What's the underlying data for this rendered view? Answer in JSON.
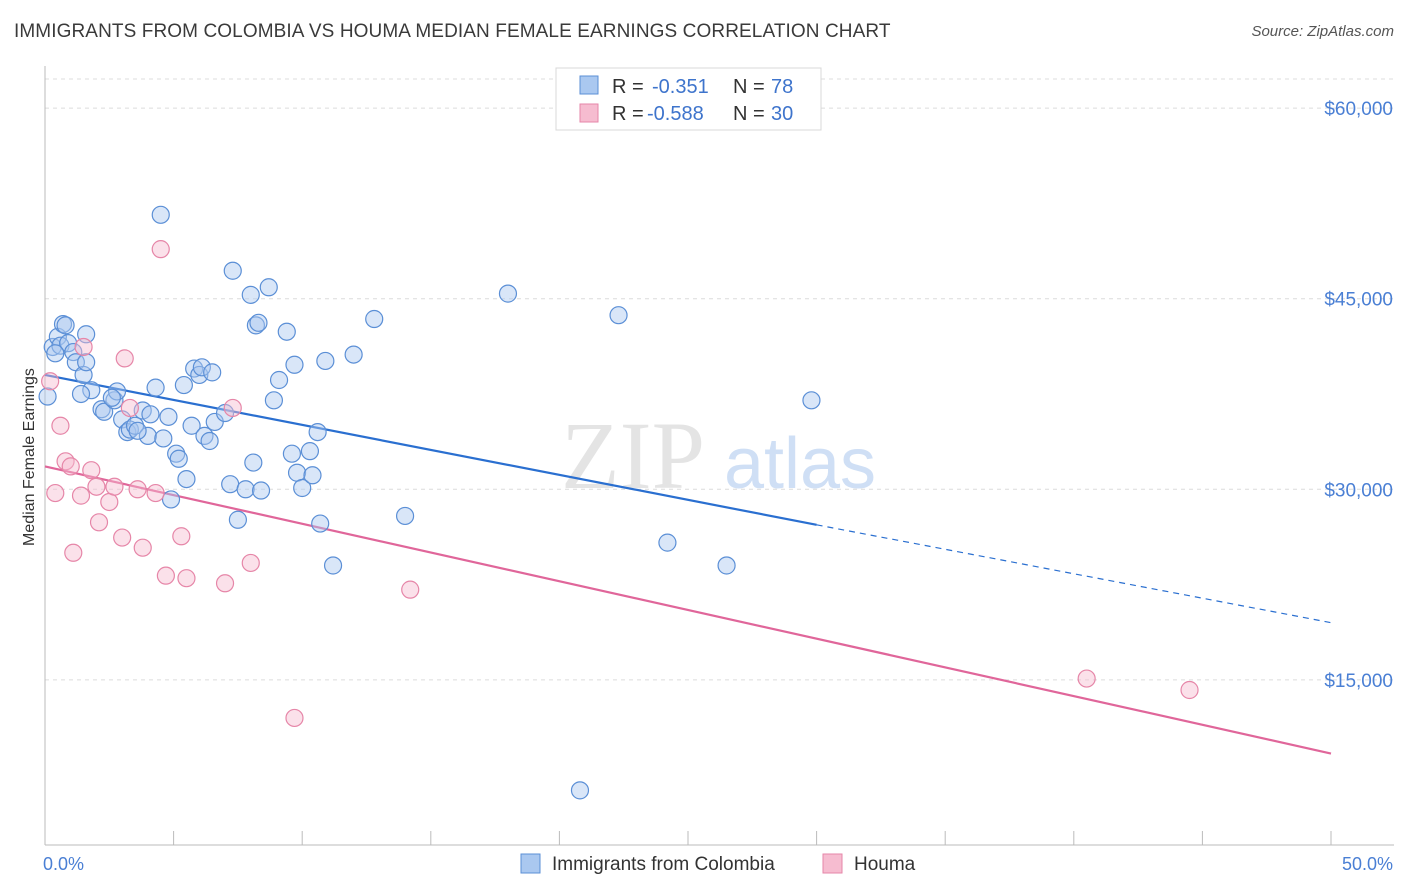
{
  "title": "IMMIGRANTS FROM COLOMBIA VS HOUMA MEDIAN FEMALE EARNINGS CORRELATION CHART",
  "source": "Source: ZipAtlas.com",
  "watermark": {
    "zip": "ZIP",
    "atlas": "atlas"
  },
  "colors": {
    "blue_fill": "#aac8f0",
    "blue_stroke": "#5b8fd6",
    "blue_line": "#2a6fd0",
    "pink_fill": "#f6bcd0",
    "pink_stroke": "#e686a8",
    "pink_line": "#e0669a",
    "grid": "#dcdcdc",
    "tick_text": "#4a7fd4"
  },
  "legend": {
    "rows": [
      {
        "r_label": "R =",
        "r_value": "-0.351",
        "n_label": "N =",
        "n_value": "78"
      },
      {
        "r_label": "R =",
        "r_value": "-0.588",
        "n_label": "N =",
        "n_value": "30"
      }
    ]
  },
  "chart_data": {
    "type": "scatter",
    "title": "IMMIGRANTS FROM COLOMBIA VS HOUMA MEDIAN FEMALE EARNINGS CORRELATION CHART",
    "xlabel": "",
    "ylabel": "Median Female Earnings",
    "xlim": [
      0,
      50
    ],
    "ylim": [
      2000,
      63000
    ],
    "x_tick_labels": [
      "0.0%",
      "50.0%"
    ],
    "y_ticks": [
      15000,
      30000,
      45000,
      60000
    ],
    "y_tick_labels": [
      "$15,000",
      "$30,000",
      "$45,000",
      "$60,000"
    ],
    "series": [
      {
        "name": "Immigrants from Colombia",
        "color": "#5b8fd6",
        "r": -0.351,
        "n": 78,
        "points": [
          [
            0.1,
            37300
          ],
          [
            0.3,
            41200
          ],
          [
            0.5,
            42000
          ],
          [
            0.6,
            41300
          ],
          [
            0.7,
            43000
          ],
          [
            0.8,
            42900
          ],
          [
            0.9,
            41500
          ],
          [
            1.1,
            40800
          ],
          [
            1.2,
            40000
          ],
          [
            1.5,
            39000
          ],
          [
            1.6,
            42200
          ],
          [
            1.6,
            40000
          ],
          [
            1.8,
            37800
          ],
          [
            2.2,
            36300
          ],
          [
            2.3,
            36100
          ],
          [
            2.7,
            37000
          ],
          [
            2.8,
            37700
          ],
          [
            3.0,
            35500
          ],
          [
            3.2,
            34500
          ],
          [
            3.3,
            34700
          ],
          [
            3.5,
            35000
          ],
          [
            3.8,
            36200
          ],
          [
            4.0,
            34200
          ],
          [
            4.1,
            35900
          ],
          [
            4.3,
            38000
          ],
          [
            4.5,
            51600
          ],
          [
            4.6,
            34000
          ],
          [
            4.8,
            35700
          ],
          [
            4.9,
            29200
          ],
          [
            5.1,
            32800
          ],
          [
            5.2,
            32400
          ],
          [
            5.4,
            38200
          ],
          [
            5.5,
            30800
          ],
          [
            5.7,
            35000
          ],
          [
            5.8,
            39500
          ],
          [
            6.0,
            39000
          ],
          [
            6.1,
            39600
          ],
          [
            6.2,
            34200
          ],
          [
            6.5,
            39200
          ],
          [
            6.6,
            35300
          ],
          [
            7.0,
            36000
          ],
          [
            7.2,
            30400
          ],
          [
            7.3,
            47200
          ],
          [
            7.5,
            27600
          ],
          [
            7.8,
            30000
          ],
          [
            8.0,
            45300
          ],
          [
            8.1,
            32100
          ],
          [
            8.2,
            42900
          ],
          [
            8.3,
            43100
          ],
          [
            8.4,
            29900
          ],
          [
            8.7,
            45900
          ],
          [
            8.9,
            37000
          ],
          [
            9.1,
            38600
          ],
          [
            9.4,
            42400
          ],
          [
            9.6,
            32800
          ],
          [
            9.7,
            39800
          ],
          [
            9.8,
            31300
          ],
          [
            10.0,
            30100
          ],
          [
            10.3,
            33000
          ],
          [
            10.4,
            31100
          ],
          [
            10.6,
            34500
          ],
          [
            10.7,
            27300
          ],
          [
            10.9,
            40100
          ],
          [
            11.2,
            24000
          ],
          [
            12.0,
            40600
          ],
          [
            12.8,
            43400
          ],
          [
            14.0,
            27900
          ],
          [
            18.0,
            45400
          ],
          [
            20.8,
            6300
          ],
          [
            22.3,
            43700
          ],
          [
            24.2,
            25800
          ],
          [
            26.5,
            24000
          ],
          [
            29.8,
            37000
          ],
          [
            0.4,
            40700
          ],
          [
            1.4,
            37500
          ],
          [
            2.6,
            37200
          ],
          [
            3.6,
            34600
          ],
          [
            6.4,
            33800
          ]
        ]
      },
      {
        "name": "Houma",
        "color": "#e686a8",
        "r": -0.588,
        "n": 30,
        "points": [
          [
            0.2,
            38500
          ],
          [
            0.4,
            29700
          ],
          [
            0.6,
            35000
          ],
          [
            0.8,
            32200
          ],
          [
            1.0,
            31800
          ],
          [
            1.1,
            25000
          ],
          [
            1.4,
            29500
          ],
          [
            1.5,
            41200
          ],
          [
            1.8,
            31500
          ],
          [
            2.0,
            30200
          ],
          [
            2.1,
            27400
          ],
          [
            2.5,
            29000
          ],
          [
            2.7,
            30200
          ],
          [
            3.0,
            26200
          ],
          [
            3.1,
            40300
          ],
          [
            3.3,
            36400
          ],
          [
            3.6,
            30000
          ],
          [
            3.8,
            25400
          ],
          [
            4.3,
            29700
          ],
          [
            4.5,
            48900
          ],
          [
            4.7,
            23200
          ],
          [
            5.3,
            26300
          ],
          [
            5.5,
            23000
          ],
          [
            7.0,
            22600
          ],
          [
            7.3,
            36400
          ],
          [
            8.0,
            24200
          ],
          [
            9.7,
            12000
          ],
          [
            14.2,
            22100
          ],
          [
            40.5,
            15100
          ],
          [
            44.5,
            14200
          ]
        ]
      }
    ],
    "trend_lines": [
      {
        "series": "Immigrants from Colombia",
        "x1": 0,
        "y1": 39000,
        "x2": 30,
        "y2": 27200,
        "dashed_to_x": 50,
        "dashed_to_y": 19500
      },
      {
        "series": "Houma",
        "x1": 0,
        "y1": 31800,
        "x2": 50,
        "y2": 9200
      }
    ]
  },
  "bottom_legend": [
    {
      "label": "Immigrants from Colombia"
    },
    {
      "label": "Houma"
    }
  ]
}
